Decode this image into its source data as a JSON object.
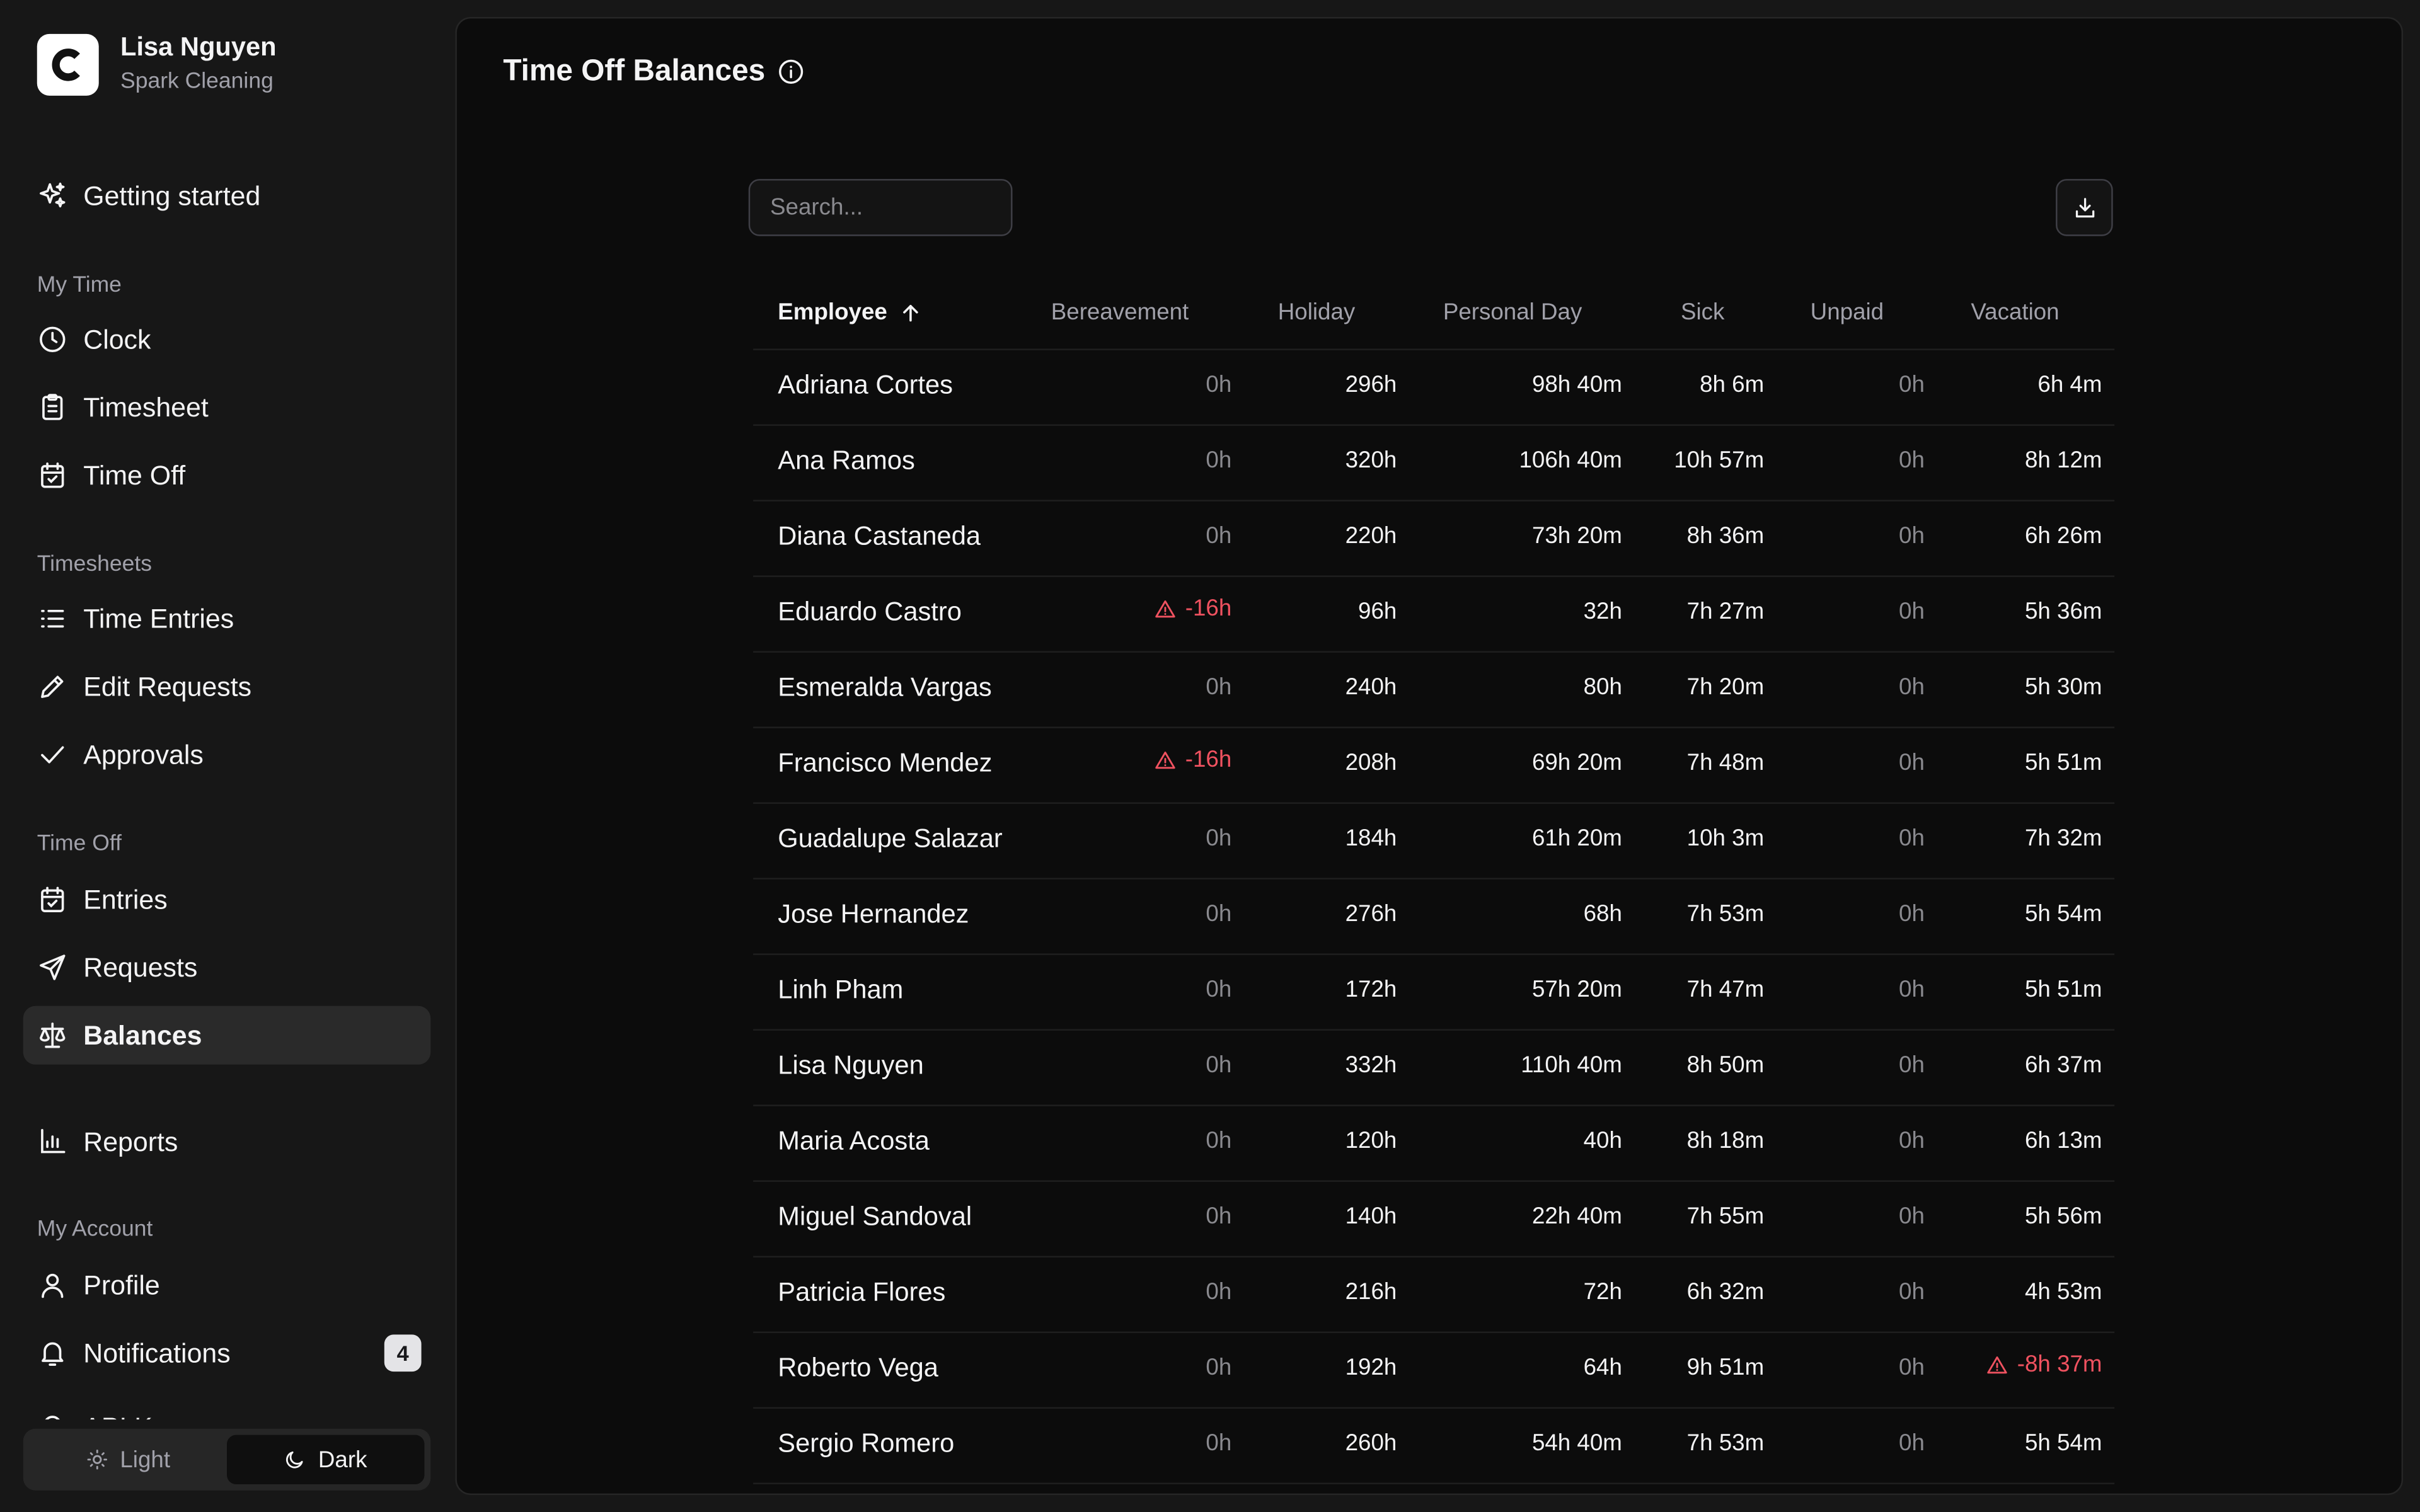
{
  "user": {
    "name": "Lisa Nguyen",
    "org": "Spark Cleaning"
  },
  "nav": {
    "getting_started": "Getting started",
    "sections": {
      "my_time": "My Time",
      "timesheets": "Timesheets",
      "time_off": "Time Off",
      "my_account": "My Account"
    },
    "clock": "Clock",
    "timesheet": "Timesheet",
    "time_off": "Time Off",
    "time_entries": "Time Entries",
    "edit_requests": "Edit Requests",
    "approvals": "Approvals",
    "entries": "Entries",
    "requests": "Requests",
    "balances": "Balances",
    "reports": "Reports",
    "profile": "Profile",
    "notifications": "Notifications",
    "notifications_count": "4",
    "partial_item": "API Keys"
  },
  "theme": {
    "light": "Light",
    "dark": "Dark",
    "active": "dark"
  },
  "page": {
    "title": "Time Off Balances"
  },
  "search": {
    "placeholder": "Search...",
    "value": ""
  },
  "table": {
    "columns": {
      "employee": "Employee",
      "bereavement": "Bereavement",
      "holiday": "Holiday",
      "personal_day": "Personal Day",
      "sick": "Sick",
      "unpaid": "Unpaid",
      "vacation": "Vacation"
    },
    "sort": {
      "column": "employee",
      "direction": "ascending"
    },
    "rows": [
      {
        "employee": "Adriana Cortes",
        "bereavement": "0h",
        "holiday": "296h",
        "personal_day": "98h 40m",
        "sick": "8h 6m",
        "unpaid": "0h",
        "vacation": "6h 4m"
      },
      {
        "employee": "Ana Ramos",
        "bereavement": "0h",
        "holiday": "320h",
        "personal_day": "106h 40m",
        "sick": "10h 57m",
        "unpaid": "0h",
        "vacation": "8h 12m"
      },
      {
        "employee": "Diana Castaneda",
        "bereavement": "0h",
        "holiday": "220h",
        "personal_day": "73h 20m",
        "sick": "8h 36m",
        "unpaid": "0h",
        "vacation": "6h 26m"
      },
      {
        "employee": "Eduardo Castro",
        "bereavement": "-16h",
        "holiday": "96h",
        "personal_day": "32h",
        "sick": "7h 27m",
        "unpaid": "0h",
        "vacation": "5h 36m"
      },
      {
        "employee": "Esmeralda Vargas",
        "bereavement": "0h",
        "holiday": "240h",
        "personal_day": "80h",
        "sick": "7h 20m",
        "unpaid": "0h",
        "vacation": "5h 30m"
      },
      {
        "employee": "Francisco Mendez",
        "bereavement": "-16h",
        "holiday": "208h",
        "personal_day": "69h 20m",
        "sick": "7h 48m",
        "unpaid": "0h",
        "vacation": "5h 51m"
      },
      {
        "employee": "Guadalupe Salazar",
        "bereavement": "0h",
        "holiday": "184h",
        "personal_day": "61h 20m",
        "sick": "10h 3m",
        "unpaid": "0h",
        "vacation": "7h 32m"
      },
      {
        "employee": "Jose Hernandez",
        "bereavement": "0h",
        "holiday": "276h",
        "personal_day": "68h",
        "sick": "7h 53m",
        "unpaid": "0h",
        "vacation": "5h 54m"
      },
      {
        "employee": "Linh Pham",
        "bereavement": "0h",
        "holiday": "172h",
        "personal_day": "57h 20m",
        "sick": "7h 47m",
        "unpaid": "0h",
        "vacation": "5h 51m"
      },
      {
        "employee": "Lisa Nguyen",
        "bereavement": "0h",
        "holiday": "332h",
        "personal_day": "110h 40m",
        "sick": "8h 50m",
        "unpaid": "0h",
        "vacation": "6h 37m"
      },
      {
        "employee": "Maria Acosta",
        "bereavement": "0h",
        "holiday": "120h",
        "personal_day": "40h",
        "sick": "8h 18m",
        "unpaid": "0h",
        "vacation": "6h 13m"
      },
      {
        "employee": "Miguel Sandoval",
        "bereavement": "0h",
        "holiday": "140h",
        "personal_day": "22h 40m",
        "sick": "7h 55m",
        "unpaid": "0h",
        "vacation": "5h 56m"
      },
      {
        "employee": "Patricia Flores",
        "bereavement": "0h",
        "holiday": "216h",
        "personal_day": "72h",
        "sick": "6h 32m",
        "unpaid": "0h",
        "vacation": "4h 53m"
      },
      {
        "employee": "Roberto Vega",
        "bereavement": "0h",
        "holiday": "192h",
        "personal_day": "64h",
        "sick": "9h 51m",
        "unpaid": "0h",
        "vacation": "-8h 37m"
      },
      {
        "employee": "Sergio Romero",
        "bereavement": "0h",
        "holiday": "260h",
        "personal_day": "54h 40m",
        "sick": "7h 53m",
        "unpaid": "0h",
        "vacation": "5h 54m"
      }
    ]
  },
  "colors": {
    "background": "#171717",
    "panel": "#0c0c0c",
    "text": "#f4f4f5",
    "muted": "#a1a1aa",
    "warning": "#f05260",
    "active_nav": "#2a2a2a"
  },
  "icons": {
    "logo": "c-logo-icon",
    "getting_started": "sparkles-icon",
    "clock": "clock-icon",
    "timesheet": "clipboard-icon",
    "time_off": "calendar-check-icon",
    "time_entries": "list-icon",
    "edit_requests": "pencil-icon",
    "approvals": "check-icon",
    "entries": "calendar-check-icon",
    "requests": "send-icon",
    "balances": "scale-icon",
    "reports": "bar-chart-icon",
    "profile": "user-icon",
    "notifications": "bell-icon",
    "title_info": "info-icon",
    "download": "download-icon",
    "sort": "arrow-up-icon",
    "warning": "alert-triangle-icon",
    "light": "sun-icon",
    "dark": "moon-icon"
  }
}
